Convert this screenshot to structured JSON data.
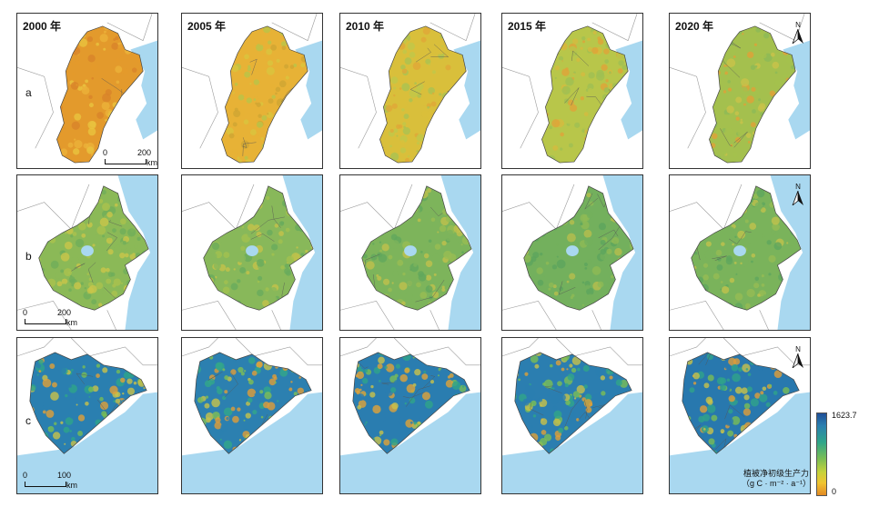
{
  "years": [
    "2000 年",
    "2005 年",
    "2010 年",
    "2015 年",
    "2020 年"
  ],
  "rows": [
    {
      "label": "a",
      "scale": {
        "zero": "0",
        "dist": "200",
        "unit": "km"
      }
    },
    {
      "label": "b",
      "scale": {
        "zero": "0",
        "dist": "200",
        "unit": "km"
      }
    },
    {
      "label": "c",
      "scale": {
        "zero": "0",
        "dist": "100",
        "unit": "km"
      }
    }
  ],
  "north": "N",
  "legend": {
    "max": "1623.7",
    "min": "0",
    "title_line1": "植被净初级生产力",
    "title_line2": "（g C · m⁻² · a⁻¹）"
  },
  "colors": {
    "sea": "#a9d8f0",
    "background": "#ffffff",
    "boundary": "#999999",
    "npp_low": "#e28a24",
    "npp_mid": "#c7d23a",
    "npp_high": "#2ea58a",
    "npp_max": "#1f4f98"
  }
}
